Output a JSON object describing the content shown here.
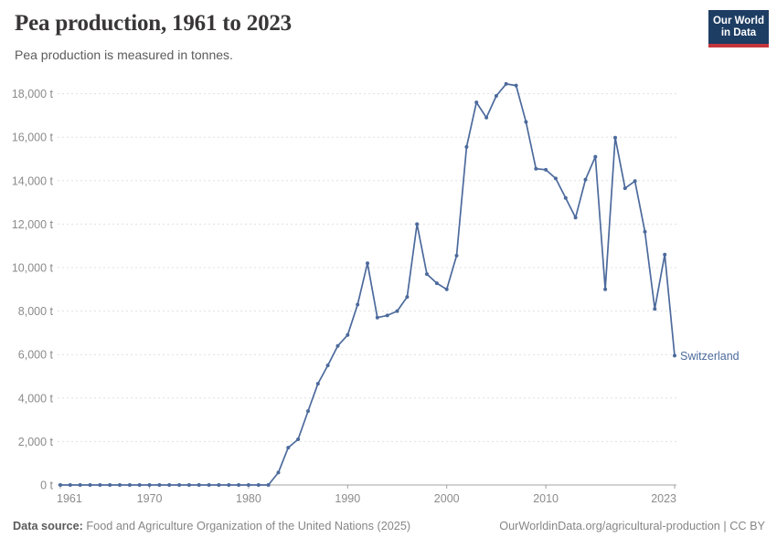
{
  "header": {
    "title": "Pea production, 1961 to 2023",
    "subtitle": "Pea production is measured in tonnes.",
    "logo": {
      "line1": "Our World",
      "line2": "in Data"
    }
  },
  "footer": {
    "source_label": "Data source:",
    "source_value": " Food and Agriculture Organization of the United Nations (2025)",
    "credit_link": "OurWorldinData.org/agricultural-production",
    "divider": " | ",
    "license": "CC BY"
  },
  "colors": {
    "line": "#4c6a9c",
    "grid": "#e0e0e0",
    "axis": "#a3a3a3",
    "tick_text": "#8b8b8b",
    "logo_bg": "#1d3d63",
    "logo_bar": "#c5353c"
  },
  "chart_data": {
    "type": "line",
    "title": "Pea production, 1961 to 2023",
    "unit": "t",
    "entity": "Switzerland",
    "end_label": "Switzerland",
    "xlabel": "",
    "ylabel": "",
    "grid": "horizontal-dashed",
    "legend_position": "end-of-line-label",
    "x_range": [
      1961,
      2023
    ],
    "ylim": [
      0,
      18000
    ],
    "yticks": [
      0,
      2000,
      4000,
      6000,
      8000,
      10000,
      12000,
      14000,
      16000,
      18000
    ],
    "xticks": [
      1961,
      1970,
      1980,
      1990,
      2000,
      2010,
      2023
    ],
    "years": [
      1961,
      1962,
      1963,
      1964,
      1965,
      1966,
      1967,
      1968,
      1969,
      1970,
      1971,
      1972,
      1973,
      1974,
      1975,
      1976,
      1977,
      1978,
      1979,
      1980,
      1981,
      1982,
      1983,
      1984,
      1985,
      1986,
      1987,
      1988,
      1989,
      1990,
      1991,
      1992,
      1993,
      1994,
      1995,
      1996,
      1997,
      1998,
      1999,
      2000,
      2001,
      2002,
      2003,
      2004,
      2005,
      2006,
      2007,
      2008,
      2009,
      2010,
      2011,
      2012,
      2013,
      2014,
      2015,
      2016,
      2017,
      2018,
      2019,
      2020,
      2021,
      2022,
      2023
    ],
    "values": [
      0,
      0,
      0,
      0,
      0,
      0,
      0,
      0,
      0,
      0,
      0,
      0,
      0,
      0,
      0,
      0,
      0,
      0,
      0,
      0,
      0,
      0,
      570,
      1720,
      2100,
      3400,
      4660,
      5500,
      6400,
      6900,
      8300,
      10200,
      7700,
      7800,
      8000,
      8650,
      12000,
      9700,
      9280,
      9000,
      10550,
      15550,
      17600,
      16900,
      17900,
      18450,
      18380,
      16700,
      14550,
      14500,
      14100,
      13200,
      12300,
      14050,
      15100,
      9000,
      15980,
      13650,
      13980,
      11650,
      8100,
      10600,
      5950
    ]
  }
}
